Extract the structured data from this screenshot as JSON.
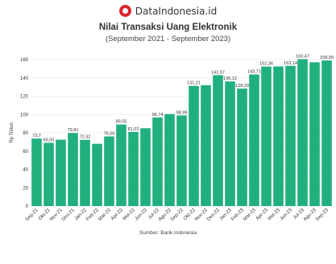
{
  "header": {
    "brand": "DataIndonesia.id",
    "logo_icon": "dataindonesia-logo-icon"
  },
  "footer": {
    "source": "Sumber: Bank Indonesia"
  },
  "colors": {
    "bar": "#21b07d",
    "grid": "#e6e6e6",
    "logo": "#d9262c"
  },
  "chart_data": {
    "type": "bar",
    "title": "Nilai Transaksi Uang Elektronik",
    "subtitle": "(September 2021 - September 2023)",
    "ylabel": "Rp Triliun",
    "xlabel": "",
    "ylim": [
      0,
      160
    ],
    "yticks": [
      0,
      20,
      40,
      60,
      80,
      100,
      120,
      140,
      160
    ],
    "grid": true,
    "categories": [
      "Sep-21",
      "Oct-21",
      "Nov-21",
      "Dec-21",
      "Jan-22",
      "Feb-22",
      "Mar-22",
      "Apr-22",
      "May-22",
      "Jun-22",
      "Jul-22",
      "Aug-22",
      "Sep-22",
      "Oct-22",
      "Nov-22",
      "Dec-22",
      "Jan-23",
      "Feb-23",
      "Mar-23",
      "Apr-23",
      "May-23",
      "Jun-23",
      "Jul-23",
      "Aug-23",
      "Sep-23"
    ],
    "values": [
      73.7,
      69.05,
      72.5,
      79.81,
      72.32,
      68.0,
      76.06,
      89.05,
      81.02,
      85.0,
      96.74,
      100.5,
      98.99,
      131.21,
      132.0,
      142.97,
      136.12,
      128.29,
      143.71,
      152.36,
      152.5,
      153.14,
      160.47,
      157.0,
      158.99
    ],
    "data_labels": [
      "73,7",
      "69,05",
      "",
      "79,81",
      "72,32",
      "",
      "76,06",
      "89,05",
      "81,02",
      "",
      "96,74",
      "",
      "98,99",
      "131,21",
      "",
      "142,97",
      "136,12",
      "128,29",
      "143,71",
      "152,36",
      "",
      "153,14",
      "160,47",
      "",
      "158,99"
    ],
    "tick_labels": [
      "Sep-21",
      "Okt-21",
      "Nov-21",
      "Des-21",
      "Jan-22",
      "Feb-22",
      "Mar-22",
      "Apr-22",
      "Mei-22",
      "Jun-22",
      "Jul-22",
      "Agu-22",
      "Sep-22",
      "Okt-22",
      "Nov-22",
      "Des-22",
      "Jan-23",
      "Feb-23",
      "Mar-23",
      "Apr-23",
      "Mei-23",
      "Jun-23",
      "Jul-23",
      "Agu-23",
      "Sep-23"
    ]
  }
}
